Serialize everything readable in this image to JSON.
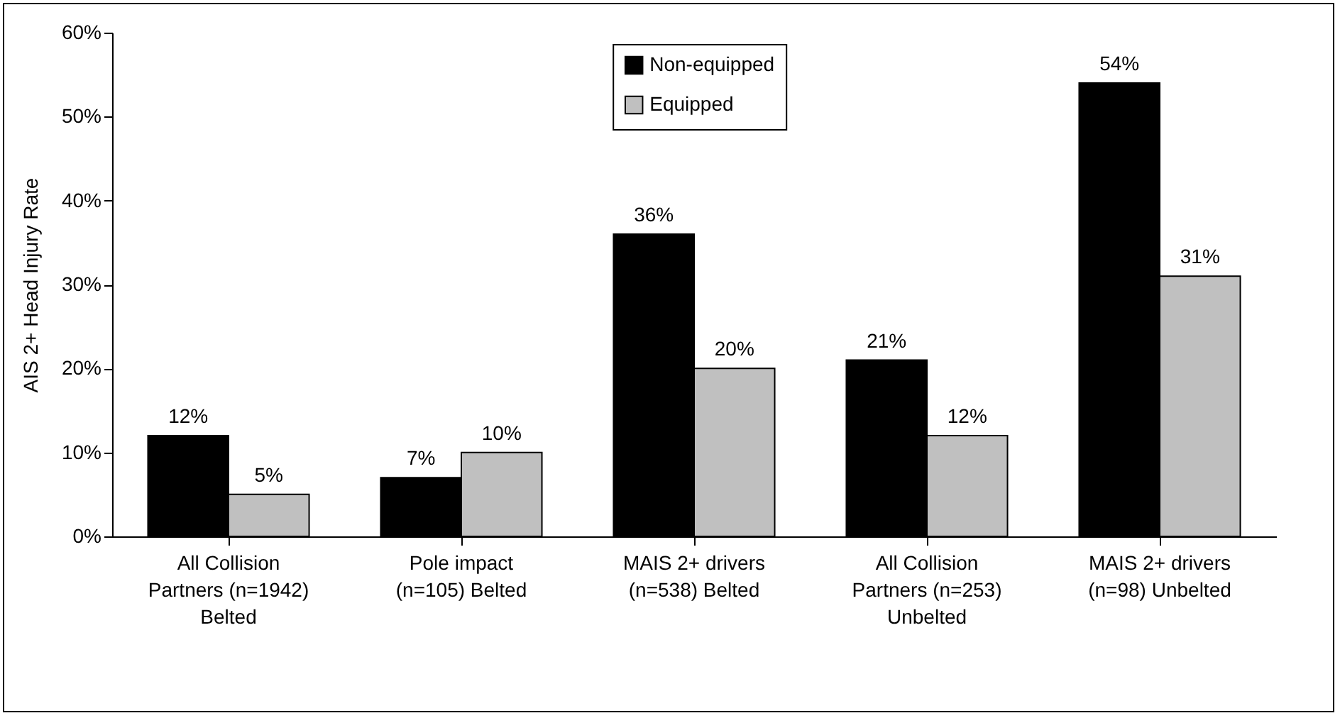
{
  "chart_data": {
    "type": "bar",
    "ylabel": "AIS 2+ Head Injury Rate",
    "categories": [
      "All Collision Partners (n=1942) Belted",
      "Pole impact (n=105) Belted",
      "MAIS 2+ drivers (n=538) Belted",
      "All Collision Partners (n=253) Unbelted",
      "MAIS 2+ drivers (n=98) Unbelted"
    ],
    "series": [
      {
        "name": "Non-equipped",
        "color": "#000000",
        "values": [
          12,
          7,
          36,
          21,
          54
        ],
        "value_labels": [
          "12%",
          "7%",
          "36%",
          "21%",
          "54%"
        ]
      },
      {
        "name": "Equipped",
        "color": "#c0c0c0",
        "values": [
          5,
          10,
          20,
          12,
          31
        ],
        "value_labels": [
          "5%",
          "10%",
          "20%",
          "12%",
          "31%"
        ]
      }
    ],
    "ylim": [
      0,
      60
    ],
    "yticks": [
      {
        "value": 0,
        "label": "0%"
      },
      {
        "value": 10,
        "label": "10%"
      },
      {
        "value": 20,
        "label": "20%"
      },
      {
        "value": 30,
        "label": "30%"
      },
      {
        "value": 40,
        "label": "40%"
      },
      {
        "value": 50,
        "label": "50%"
      },
      {
        "value": 60,
        "label": "60%"
      }
    ],
    "grid": false,
    "legend": "top"
  }
}
